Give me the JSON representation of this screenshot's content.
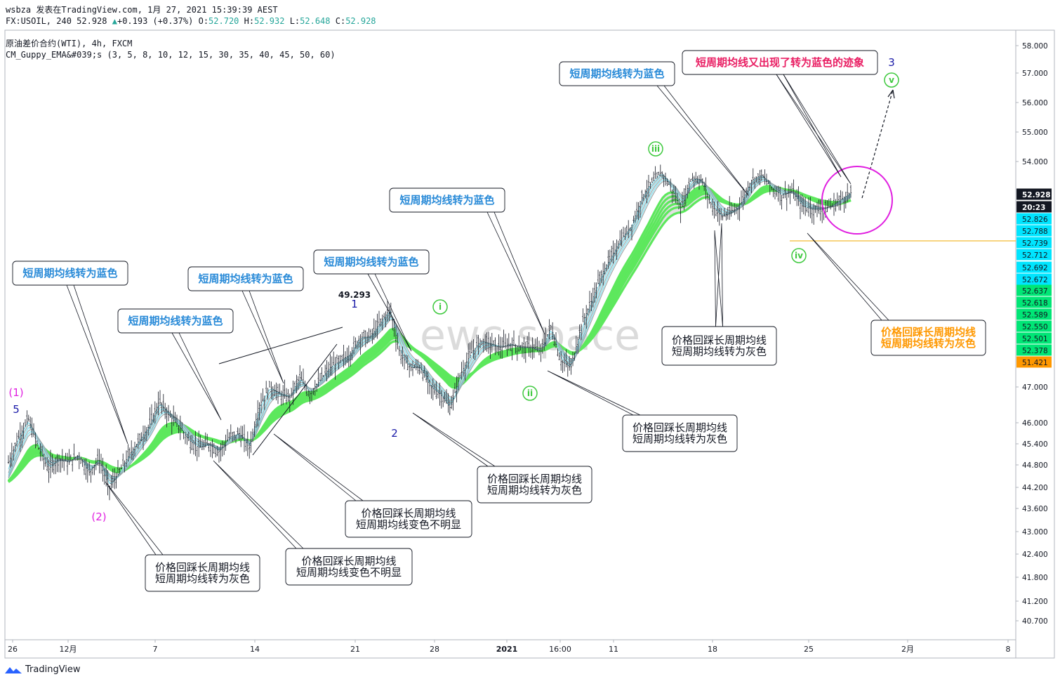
{
  "header": {
    "line1": "wsbza 发表在TradingView.com, 1月 27, 2021 15:39:39 AEST",
    "symbol": "FX:USOIL, 240",
    "last": "52.928",
    "change": "+0.193 (+0.37%)",
    "o_label": "O:",
    "o": "52.720",
    "h_label": "H:",
    "h": "52.932",
    "l_label": "L:",
    "l": "52.648",
    "c_label": "C:",
    "c": "52.928",
    "title": "原油差价合约(WTI), 4h, FXCM",
    "indicator": "CM_Guppy_EMA&#039;s (3, 5, 8, 10, 12, 15, 30, 35, 40, 45, 50, 60)"
  },
  "colors": {
    "up_arrow": "#26a69a",
    "ohlc_value": "#26a69a",
    "long_ema": "#5de85d",
    "long_fill": "#dcdcdc",
    "short_ema": "#7fdcec",
    "short_gray": "#9e9e9e",
    "callout_blue": "#2a8bd8",
    "callout_pink": "#e91e63",
    "callout_orange": "#ff9800",
    "wave_green": "#3ec93e",
    "wave_blue": "#1a1aa8",
    "wave_magenta": "#e020e0",
    "price_line": "#f2a900"
  },
  "chart_data": {
    "type": "candlestick",
    "title": "原油差价合约(WTI), 4h, FXCM",
    "watermark": "ewc space",
    "y_ticks": [
      "58.000",
      "57.000",
      "56.000",
      "55.000",
      "54.000",
      "47.000",
      "46.000",
      "45.400",
      "44.800",
      "44.200",
      "43.600",
      "43.000",
      "42.400",
      "41.800",
      "41.200",
      "40.700"
    ],
    "price_labels": [
      {
        "value": "52.928",
        "style": "dark"
      },
      {
        "value": "20:23",
        "style": "dark"
      },
      {
        "value": "52.826",
        "style": "cyan"
      },
      {
        "value": "52.788",
        "style": "cyan"
      },
      {
        "value": "52.739",
        "style": "cyan"
      },
      {
        "value": "52.712",
        "style": "cyan"
      },
      {
        "value": "52.692",
        "style": "cyan"
      },
      {
        "value": "52.672",
        "style": "cyan"
      },
      {
        "value": "52.637",
        "style": "green"
      },
      {
        "value": "52.618",
        "style": "green"
      },
      {
        "value": "52.589",
        "style": "green"
      },
      {
        "value": "52.550",
        "style": "green"
      },
      {
        "value": "52.501",
        "style": "green"
      },
      {
        "value": "52.378",
        "style": "green"
      },
      {
        "value": "51.421",
        "style": "orange"
      }
    ],
    "x_ticks": [
      "26",
      "12月",
      "7",
      "14",
      "21",
      "28",
      "2021",
      "16:00",
      "11",
      "18",
      "25",
      "2月",
      "8"
    ],
    "price_path": [
      44.9,
      45.6,
      46.1,
      45.3,
      44.7,
      45.0,
      44.9,
      45.1,
      44.6,
      45.0,
      44.2,
      44.6,
      45.1,
      45.5,
      45.9,
      46.6,
      46.2,
      45.9,
      45.5,
      45.3,
      45.4,
      45.2,
      45.6,
      45.7,
      45.3,
      46.5,
      47.0,
      46.8,
      46.7,
      47.3,
      46.8,
      47.2,
      47.6,
      47.8,
      48.0,
      48.5,
      48.5,
      48.9,
      49.3,
      48.0,
      47.6,
      47.6,
      47.0,
      46.8,
      46.4,
      47.4,
      48.0,
      48.4,
      48.3,
      48.2,
      48.3,
      48.2,
      48.2,
      48.1,
      48.8,
      47.8,
      47.6,
      48.8,
      49.5,
      50.3,
      50.9,
      51.5,
      51.9,
      52.7,
      53.2,
      53.6,
      53.0,
      52.4,
      53.4,
      53.3,
      52.5,
      52.2,
      52.3,
      52.6,
      53.3,
      53.5,
      53.0,
      52.8,
      52.9,
      52.5,
      52.4,
      52.4,
      52.5,
      52.7,
      52.9
    ],
    "callouts": [
      {
        "text": "短周期均线转为蓝色",
        "style": "blue"
      },
      {
        "text": "短周期均线转为蓝色",
        "style": "blue"
      },
      {
        "text": "短周期均线转为蓝色",
        "style": "blue"
      },
      {
        "text": "短周期均线转为蓝色",
        "style": "blue"
      },
      {
        "text": "短周期均线转为蓝色",
        "style": "blue"
      },
      {
        "text": "短周期均线转为蓝色",
        "style": "blue"
      },
      {
        "text": "短周期均线又出现了转为蓝色的迹象",
        "style": "pink"
      },
      {
        "text": "价格回踩长周期均线\n短周期均线转为灰色",
        "style": "dark"
      },
      {
        "text": "价格回踩长周期均线\n短周期均线变色不明显",
        "style": "dark"
      },
      {
        "text": "价格回踩长周期均线\n短周期均线变色不明显",
        "style": "dark"
      },
      {
        "text": "价格回踩长周期均线\n短周期均线转为灰色",
        "style": "dark"
      },
      {
        "text": "价格回踩长周期均线\n短周期均线转为灰色",
        "style": "dark"
      },
      {
        "text": "价格回踩长周期均线\n短周期均线转为灰色",
        "style": "dark"
      },
      {
        "text": "价格回踩长周期均线\n短周期均线转为灰色",
        "style": "orange"
      }
    ],
    "wave_labels": [
      {
        "text": "(1)",
        "style": "magenta"
      },
      {
        "text": "5",
        "style": "blue"
      },
      {
        "text": "(2)",
        "style": "magenta"
      },
      {
        "text": "49.293",
        "style": "black"
      },
      {
        "text": "1",
        "style": "blue"
      },
      {
        "text": "2",
        "style": "blue"
      },
      {
        "text": "i",
        "style": "green-circle"
      },
      {
        "text": "ii",
        "style": "green-circle"
      },
      {
        "text": "iii",
        "style": "green-circle"
      },
      {
        "text": "iv",
        "style": "green-circle"
      },
      {
        "text": "v",
        "style": "green-circle"
      },
      {
        "text": "3",
        "style": "blue"
      }
    ]
  },
  "footer": {
    "brand": "TradingView"
  }
}
